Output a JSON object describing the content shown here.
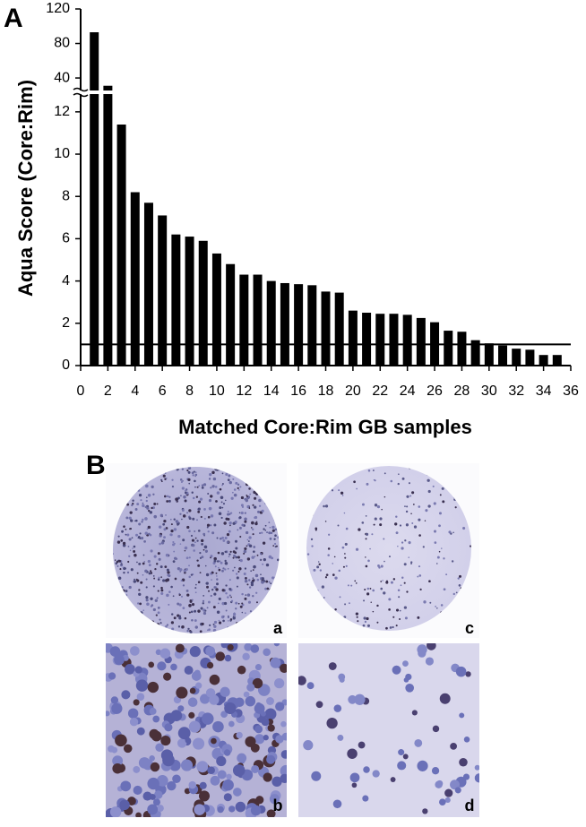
{
  "chart_data": {
    "type": "bar",
    "panel_label": "A",
    "ylabel": "Aqua Score (Core:Rim)",
    "xlabel": "Matched Core:Rim GB samples",
    "x": [
      1,
      2,
      3,
      4,
      5,
      6,
      7,
      8,
      9,
      10,
      11,
      12,
      13,
      14,
      15,
      16,
      17,
      18,
      19,
      20,
      21,
      22,
      23,
      24,
      25,
      26,
      27,
      28,
      29,
      30,
      31,
      32,
      33,
      34,
      35
    ],
    "values": [
      93,
      31,
      11.4,
      8.2,
      7.7,
      7.1,
      6.2,
      6.1,
      5.9,
      5.3,
      4.8,
      4.3,
      4.3,
      4.0,
      3.9,
      3.85,
      3.8,
      3.5,
      3.45,
      2.6,
      2.5,
      2.45,
      2.45,
      2.4,
      2.25,
      2.05,
      1.65,
      1.6,
      1.2,
      1.05,
      0.95,
      0.8,
      0.75,
      0.5,
      0.5
    ],
    "color": "#000000",
    "xlim": [
      0,
      36
    ],
    "xticks": [
      0,
      2,
      4,
      6,
      8,
      10,
      12,
      14,
      16,
      18,
      20,
      22,
      24,
      26,
      28,
      30,
      32,
      34,
      36
    ],
    "ylim": [
      0,
      120
    ],
    "y_break": [
      12.9,
      25
    ],
    "yticks": [
      0,
      2,
      4,
      6,
      8,
      10,
      12,
      40,
      80,
      120
    ],
    "reference_line": 1
  },
  "panel_b": {
    "label": "B",
    "images": [
      "a",
      "b",
      "c",
      "d"
    ]
  }
}
